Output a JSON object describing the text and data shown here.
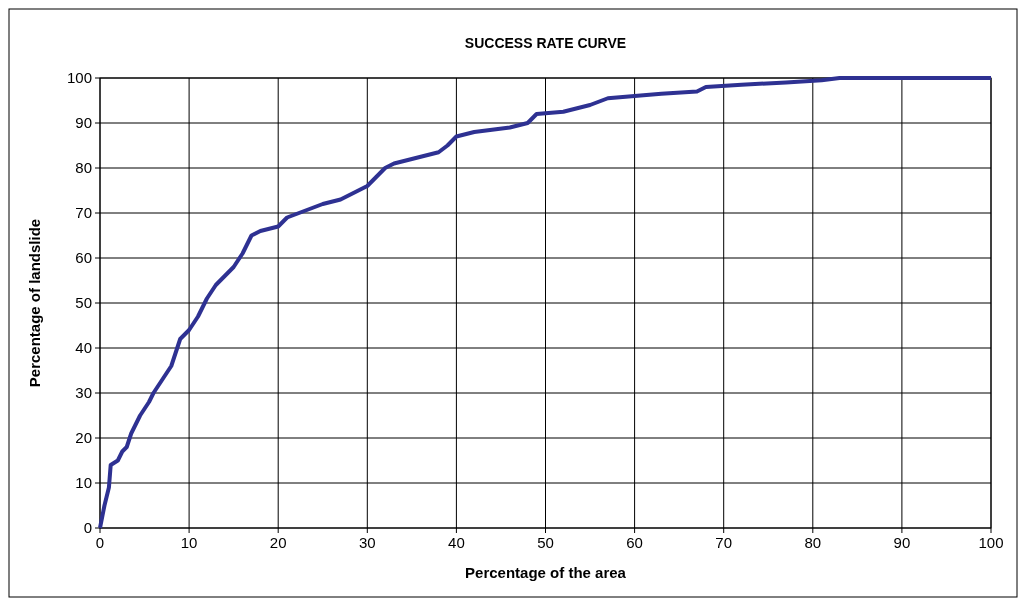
{
  "chart_data": {
    "type": "line",
    "title": "SUCCESS RATE CURVE",
    "xlabel": "Percentage of the area",
    "ylabel": "Percentage of landslide",
    "series": [
      {
        "color": "#2e3192",
        "x": [
          0,
          0.5,
          1,
          1.2,
          2,
          2.5,
          3,
          3.5,
          4.5,
          5.5,
          6,
          7,
          8,
          8.5,
          9,
          10,
          11,
          12,
          13,
          14,
          15,
          16,
          17,
          18,
          20,
          21,
          23,
          25,
          27,
          29,
          30,
          31,
          32,
          33,
          35,
          37,
          38,
          39,
          40,
          42,
          44,
          46,
          47,
          48,
          49,
          52,
          55,
          57,
          60,
          63,
          67,
          68,
          72,
          77,
          81,
          83,
          100
        ],
        "values": [
          0,
          5,
          9,
          14,
          15,
          17,
          18,
          21,
          25,
          28,
          30,
          33,
          36,
          39,
          42,
          44,
          47,
          51,
          54,
          56,
          58,
          61,
          65,
          66,
          67,
          69,
          70.5,
          72,
          73,
          75,
          76,
          78,
          80,
          81,
          82,
          83,
          83.5,
          85,
          87,
          88,
          88.5,
          89,
          89.5,
          90,
          92,
          92.5,
          94,
          95.5,
          96,
          96.5,
          97,
          98,
          98.5,
          99,
          99.5,
          100,
          100
        ]
      }
    ],
    "xlim": [
      0,
      100
    ],
    "ylim": [
      0,
      100
    ],
    "xticks": [
      0,
      10,
      20,
      30,
      40,
      50,
      60,
      70,
      80,
      90,
      100
    ],
    "yticks": [
      0,
      10,
      20,
      30,
      40,
      50,
      60,
      70,
      80,
      90,
      100
    ],
    "grid": true
  }
}
